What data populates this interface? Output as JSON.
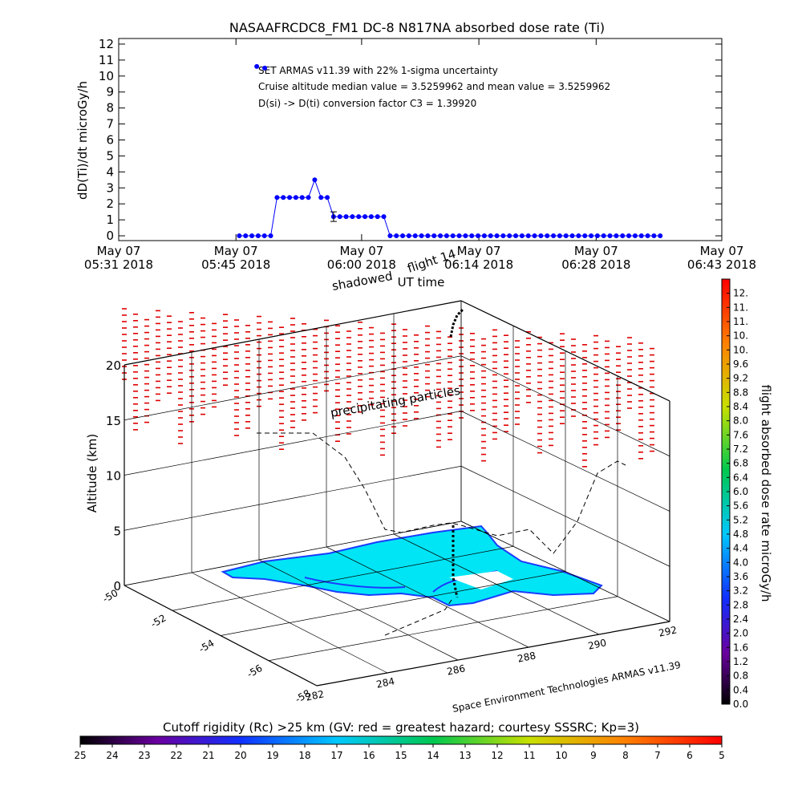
{
  "chart_data": [
    {
      "type": "line",
      "title": "NASAAFRCDC8_FM1 DC-8   N817NA absorbed dose rate (Ti)",
      "y_label": "dD(Ti)/dt microGy/h",
      "x_label": "UT time",
      "annotations": [
        "SET ARMAS v11.39 with 22% 1-sigma uncertainty",
        "Cruise altitude median value = 3.5259962 and mean value = 3.5259962",
        "D(si) -> D(ti) conversion factor C3 = 1.39920"
      ],
      "xlim": [
        "05:31:00",
        "06:43:00"
      ],
      "xticks": [
        {
          "value": "05:31:00",
          "label": "May 07",
          "sublabel": "05:31 2018"
        },
        {
          "value": "05:45:00",
          "label": "May 07",
          "sublabel": "05:45 2018"
        },
        {
          "value": "06:00:00",
          "label": "May 07",
          "sublabel": "06:00 2018"
        },
        {
          "value": "06:14:00",
          "label": "May 07",
          "sublabel": "06:14 2018"
        },
        {
          "value": "06:28:00",
          "label": "May 07",
          "sublabel": "06:28 2018"
        },
        {
          "value": "06:43:00",
          "label": "May 07",
          "sublabel": "06:43 2018"
        }
      ],
      "ylim": [
        -0.3,
        12.35
      ],
      "yticks": [
        0,
        1,
        2,
        3,
        4,
        5,
        6,
        7,
        8,
        9,
        10,
        11,
        12
      ],
      "series": [
        {
          "color": "#0000ff",
          "connected": true,
          "x": [
            "05:45:24",
            "05:46:09",
            "05:46:54",
            "05:47:39",
            "05:48:24",
            "05:49:09",
            "05:49:54",
            "05:50:39",
            "05:51:24",
            "05:52:09",
            "05:52:54",
            "05:53:39",
            "05:54:24",
            "05:55:09",
            "05:55:54",
            "05:56:39",
            "05:57:24",
            "05:58:09",
            "05:58:54",
            "05:59:39",
            "06:00:24",
            "06:01:09",
            "06:01:54",
            "06:02:39",
            "06:03:24",
            "06:04:09",
            "06:04:54",
            "06:05:39",
            "06:06:24",
            "06:07:09",
            "06:07:54",
            "06:08:39",
            "06:09:24",
            "06:10:09",
            "06:10:54",
            "06:11:39",
            "06:12:24",
            "06:13:09",
            "06:13:54",
            "06:14:39",
            "06:15:24",
            "06:16:09",
            "06:16:54",
            "06:17:39",
            "06:18:24",
            "06:19:09",
            "06:19:54",
            "06:20:39",
            "06:21:24",
            "06:22:09",
            "06:22:54",
            "06:23:39",
            "06:24:24",
            "06:25:09",
            "06:25:54",
            "06:26:39",
            "06:27:24",
            "06:28:09",
            "06:28:54",
            "06:29:39",
            "06:30:24",
            "06:31:09",
            "06:31:54",
            "06:32:39",
            "06:33:24",
            "06:34:09",
            "06:34:54",
            "06:35:39"
          ],
          "values": [
            0,
            0,
            0,
            0,
            0,
            0,
            2.4,
            2.4,
            2.4,
            2.4,
            2.4,
            2.4,
            3.5,
            2.4,
            2.4,
            1.2,
            1.2,
            1.2,
            1.2,
            1.2,
            1.2,
            1.2,
            1.2,
            1.2,
            0,
            0,
            0,
            0,
            0,
            0,
            0,
            0,
            0,
            0,
            0,
            0,
            0,
            0,
            0,
            0,
            0,
            0,
            0,
            0,
            0,
            0,
            0,
            0,
            0,
            0,
            0,
            0,
            0,
            0,
            0,
            0,
            0,
            0,
            0,
            0,
            0,
            0,
            0,
            0,
            0,
            0,
            0,
            0
          ],
          "errors": [
            null,
            null,
            null,
            null,
            null,
            null,
            null,
            null,
            null,
            null,
            null,
            null,
            null,
            null,
            null,
            0.3,
            null,
            null,
            null,
            null,
            null,
            null,
            null,
            null,
            null,
            null,
            null,
            null,
            null,
            null,
            null,
            null,
            null,
            null,
            null,
            null,
            null,
            null,
            null,
            null,
            null,
            null,
            null,
            null,
            null,
            null,
            null,
            null,
            null,
            null,
            null,
            null,
            null,
            null,
            null,
            null,
            null,
            null,
            null,
            null,
            null,
            null,
            null,
            null,
            null,
            null,
            null,
            null
          ]
        },
        {
          "color": "#0000ff",
          "connected": false,
          "x": [
            "05:47:29",
            "05:48:26"
          ],
          "values": [
            10.6,
            10.5
          ]
        }
      ]
    },
    {
      "type": "surface3d",
      "texts": [
        "shadowed",
        "flight 14",
        "precipitating particles",
        "Space Environment Technologies ARMAS v11.39"
      ],
      "z_label": "Altitude (km)",
      "zlim": [
        0,
        20
      ],
      "zticks": [
        0,
        5,
        10,
        15,
        20
      ],
      "lat_lim": [
        -50,
        -58
      ],
      "lat_ticks": [
        -50,
        -52,
        -54,
        -56,
        -58
      ],
      "lon_lim": [
        282,
        292
      ],
      "lon_ticks": [
        282,
        284,
        286,
        288,
        290,
        292
      ]
    },
    {
      "type": "colorbar",
      "orientation": "vertical",
      "label": "flight absorbed dose rate microGy/h",
      "lim": [
        0,
        12
      ],
      "ticks": [
        {
          "value": 0,
          "label": "0.0"
        },
        0.4,
        0.8,
        1.2,
        1.6,
        {
          "value": 2,
          "label": "2.0"
        },
        2.4,
        2.8,
        3.2,
        3.6,
        {
          "value": 4,
          "label": "4.0"
        },
        4.4,
        4.8,
        5.2,
        5.6,
        {
          "value": 6,
          "label": "6.0"
        },
        6.4,
        6.8,
        7.2,
        7.6,
        {
          "value": 8,
          "label": "8.0"
        },
        8.4,
        8.8,
        9.2,
        9.6,
        {
          "value": 10,
          "label": "10."
        },
        {
          "value": 10.4,
          "label": "10."
        },
        {
          "value": 10.8,
          "label": "11."
        },
        {
          "value": 11.2,
          "label": "11."
        },
        {
          "value": 11.6,
          "label": "12."
        }
      ]
    },
    {
      "type": "colorbar",
      "orientation": "horizontal",
      "label": "Cutoff rigidity (Rc) >25 km (GV: red = greatest hazard; courtesy SSSRC; Kp=3)",
      "lim": [
        25,
        5
      ],
      "ticks": [
        25,
        24,
        23,
        22,
        21,
        20,
        19,
        18,
        17,
        16,
        15,
        14,
        13,
        12,
        11,
        10,
        9,
        8,
        7,
        6,
        5
      ]
    }
  ]
}
